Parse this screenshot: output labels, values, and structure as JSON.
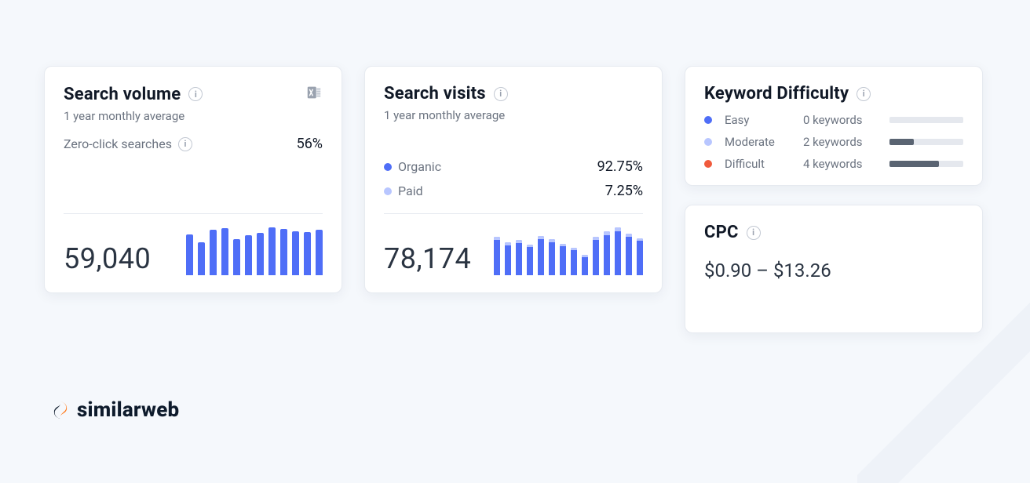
{
  "colors": {
    "blue": "#4f6ef7",
    "blue_light": "#b8c6ff",
    "red": "#f05a3c",
    "bar_track": "#e5e8ee",
    "bar_fill": "#5a6472"
  },
  "volume": {
    "title": "Search volume",
    "subtitle": "1 year monthly average",
    "zero_click_label": "Zero-click searches",
    "zero_click_value": "56%",
    "total": "59,040",
    "chart": {
      "type": "bar",
      "max": 100,
      "values": [
        82,
        66,
        90,
        94,
        72,
        80,
        84,
        96,
        92,
        88,
        86,
        90
      ],
      "bar_color": "#4f6ef7"
    }
  },
  "visits": {
    "title": "Search visits",
    "subtitle": "1 year monthly average",
    "organic_label": "Organic",
    "organic_value": "92.75%",
    "paid_label": "Paid",
    "paid_value": "7.25%",
    "total": "78,174",
    "chart": {
      "type": "stacked-bar",
      "max": 100,
      "organic": [
        70,
        60,
        64,
        56,
        72,
        66,
        58,
        50,
        36,
        70,
        80,
        88,
        76,
        68
      ],
      "paid": [
        6,
        5,
        6,
        5,
        6,
        6,
        5,
        5,
        4,
        6,
        7,
        8,
        7,
        6
      ],
      "organic_color": "#4f6ef7",
      "paid_color": "#b8c6ff"
    }
  },
  "difficulty": {
    "title": "Keyword Difficulty",
    "max_keywords": 6,
    "levels": [
      {
        "label": "Easy",
        "count": 0,
        "count_text": "0 keywords",
        "dot_color": "#4f6ef7"
      },
      {
        "label": "Moderate",
        "count": 2,
        "count_text": "2 keywords",
        "dot_color": "#b8c6ff"
      },
      {
        "label": "Difficult",
        "count": 4,
        "count_text": "4 keywords",
        "dot_color": "#f05a3c"
      }
    ]
  },
  "cpc": {
    "title": "CPC",
    "range": "$0.90 – $13.26"
  },
  "brand": {
    "name": "similarweb"
  }
}
